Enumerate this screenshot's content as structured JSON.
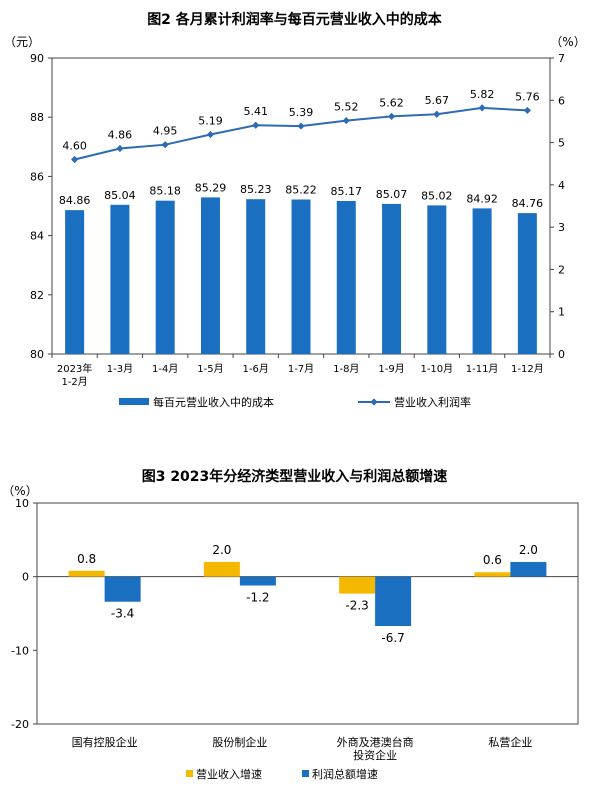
{
  "chart_data": [
    {
      "type": "bar",
      "title": "图2 各月累计利润率与每百元营业收入中的成本",
      "ylabel": "（元）",
      "y2label": "（%）",
      "ylim": [
        80,
        90
      ],
      "y2lim": [
        0,
        7
      ],
      "yticks": [
        "80",
        "82",
        "84",
        "86",
        "88",
        "90"
      ],
      "y2ticks": [
        "0",
        "1",
        "2",
        "3",
        "4",
        "5",
        "6",
        "7"
      ],
      "categories": [
        [
          "2023年",
          "1-2月"
        ],
        [
          "1-3月"
        ],
        [
          "1-4月"
        ],
        [
          "1-5月"
        ],
        [
          "1-6月"
        ],
        [
          "1-7月"
        ],
        [
          "1-8月"
        ],
        [
          "1-9月"
        ],
        [
          "1-10月"
        ],
        [
          "1-11月"
        ],
        [
          "1-12月"
        ]
      ],
      "series": [
        {
          "name": "每百元营业收入中的成本",
          "type": "bar",
          "axis": "left",
          "color": "#1a6fc0",
          "values": [
            84.86,
            85.04,
            85.18,
            85.29,
            85.23,
            85.22,
            85.17,
            85.07,
            85.02,
            84.92,
            84.76
          ],
          "labels": [
            "84.86",
            "85.04",
            "85.18",
            "85.29",
            "85.23",
            "85.22",
            "85.17",
            "85.07",
            "85.02",
            "84.92",
            "84.76"
          ]
        },
        {
          "name": "营业收入利润率",
          "type": "line",
          "axis": "right",
          "color": "#2e6bb5",
          "values": [
            4.6,
            4.86,
            4.95,
            5.19,
            5.41,
            5.39,
            5.52,
            5.62,
            5.67,
            5.82,
            5.76
          ],
          "labels": [
            "4.60",
            "4.86",
            "4.95",
            "5.19",
            "5.41",
            "5.39",
            "5.52",
            "5.62",
            "5.67",
            "5.82",
            "5.76"
          ]
        }
      ],
      "legend": "bottom",
      "grid": false
    },
    {
      "type": "bar",
      "title": "图3 2023年分经济类型营业收入与利润总额增速",
      "ylabel": "（%）",
      "ylim": [
        -20,
        10
      ],
      "yticks": [
        "10",
        "0",
        "-10",
        "-20"
      ],
      "categories": [
        [
          "国有控股企业"
        ],
        [
          "股份制企业"
        ],
        [
          "外商及港澳台商",
          "投资企业"
        ],
        [
          "私营企业"
        ]
      ],
      "series": [
        {
          "name": "营业收入增速",
          "color": "#f5b800",
          "values": [
            0.8,
            2.0,
            -2.3,
            0.6
          ],
          "labels": [
            "0.8",
            "2.0",
            "-2.3",
            "0.6"
          ]
        },
        {
          "name": "利润总额增速",
          "color": "#1a6fc0",
          "values": [
            -3.4,
            -1.2,
            -6.7,
            2.0
          ],
          "labels": [
            "-3.4",
            "-1.2",
            "-6.7",
            "2.0"
          ]
        }
      ],
      "legend": "bottom",
      "grid": false
    }
  ]
}
